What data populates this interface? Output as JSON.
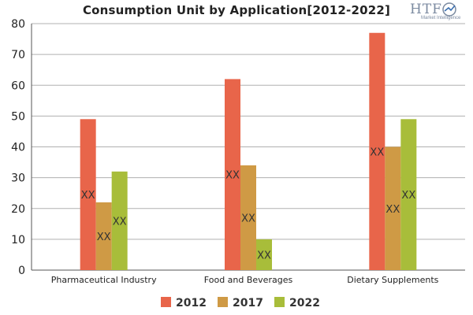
{
  "title": "Consumption Unit by  Application[2012-2022]",
  "logo": {
    "text": "HTF",
    "subtext": "Market Intelligence"
  },
  "colors": {
    "2012": "#e8654a",
    "2017": "#cf9a45",
    "2022": "#a8bd3a",
    "grid": "#b0b0b0",
    "axis": "#555555"
  },
  "chart_data": {
    "type": "bar",
    "categories": [
      "Pharmaceutical Industry",
      "Food and Beverages",
      "Dietary Supplements"
    ],
    "series": [
      {
        "name": "2012",
        "values": [
          49,
          62,
          77
        ],
        "labels": [
          "XX",
          "XX",
          "XX"
        ]
      },
      {
        "name": "2017",
        "values": [
          22,
          34,
          40
        ],
        "labels": [
          "XX",
          "XX",
          "XX"
        ]
      },
      {
        "name": "2022",
        "values": [
          32,
          10,
          49
        ],
        "labels": [
          "XX",
          "XX",
          "XX"
        ]
      }
    ],
    "ylim": [
      0,
      80
    ],
    "yticks": [
      "0",
      "10",
      "20",
      "30",
      "40",
      "50",
      "60",
      "70",
      "80"
    ],
    "grid": true,
    "legend_position": "bottom"
  }
}
